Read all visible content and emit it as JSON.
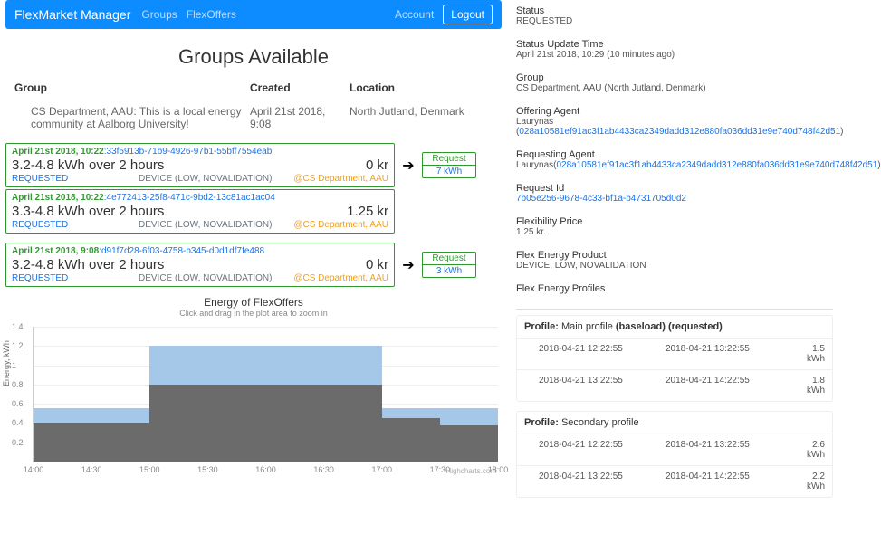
{
  "nav": {
    "brand": "FlexMarket Manager",
    "links": [
      "Groups",
      "FlexOffers"
    ],
    "account": "Account",
    "logout": "Logout"
  },
  "page_title": "Groups Available",
  "groups_table": {
    "headers": {
      "group": "Group",
      "created": "Created",
      "location": "Location"
    },
    "rows": [
      {
        "group": "CS Department, AAU: This is a local energy community at Aalborg University!",
        "created": "April 21st 2018, 9:08",
        "location": "North Jutland, Denmark"
      }
    ]
  },
  "clusters": [
    {
      "offers": [
        {
          "ts": "April 21st 2018, 10:22",
          "id": ":33f5913b-71b9-4926-97b1-55bff7554eab",
          "desc": "3.2-4.8 kWh over 2 hours",
          "price": "0 kr",
          "status": "REQUESTED",
          "dev": "DEVICE (LOW, NOVALIDATION)",
          "loc": "@CS Department, AAU"
        },
        {
          "ts": "April 21st 2018, 10:22",
          "id": ":4e772413-25f8-471c-9bd2-13c81ac1ac04",
          "desc": "3.3-4.8 kWh over 2 hours",
          "price": "1.25 kr",
          "status": "REQUESTED",
          "dev": "DEVICE (LOW, NOVALIDATION)",
          "loc": "@CS Department, AAU"
        }
      ],
      "request": {
        "label": "Request",
        "energy": "7 kWh"
      }
    },
    {
      "offers": [
        {
          "ts": "April 21st 2018, 9:08",
          "id": ":d91f7d28-6f03-4758-b345-d0d1df7fe488",
          "desc": "3.2-4.8 kWh over 2 hours",
          "price": "0 kr",
          "status": "REQUESTED",
          "dev": "DEVICE (LOW, NOVALIDATION)",
          "loc": "@CS Department, AAU"
        }
      ],
      "request": {
        "label": "Request",
        "energy": "3 kWh"
      }
    }
  ],
  "chart": {
    "title": "Energy of FlexOffers",
    "subtitle": "Click and drag in the plot area to zoom in",
    "ylabel": "Energy, kWh",
    "credit": "Highcharts.com",
    "ymax": 1.4,
    "yticks": [
      0.2,
      0.4,
      0.6,
      0.8,
      1,
      1.2,
      1.4
    ],
    "xticks": [
      "14:00",
      "14:30",
      "15:00",
      "15:30",
      "16:00",
      "16:30",
      "17:00",
      "17:30",
      "18:00"
    ],
    "colors": {
      "upper": "#a6c8e8",
      "lower": "#6b6b6b",
      "grid": "#eeeeee",
      "axis": "#cccccc"
    },
    "series": [
      {
        "upper": 0.55,
        "lower": 0.4
      },
      {
        "upper": 0.55,
        "lower": 0.4
      },
      {
        "upper": 1.2,
        "lower": 0.8
      },
      {
        "upper": 1.2,
        "lower": 0.8
      },
      {
        "upper": 1.2,
        "lower": 0.8
      },
      {
        "upper": 1.2,
        "lower": 0.8
      },
      {
        "upper": 0.55,
        "lower": 0.45
      },
      {
        "upper": 0.55,
        "lower": 0.38
      }
    ]
  },
  "detail": {
    "status": {
      "k": "Status",
      "v": "REQUESTED"
    },
    "status_time": {
      "k": "Status Update Time",
      "v": "April 21st 2018, 10:29 (10 minutes ago)"
    },
    "group": {
      "k": "Group",
      "v": "CS Department, AAU (North Jutland, Denmark)"
    },
    "offering_agent": {
      "k": "Offering Agent",
      "name": "Laurynas",
      "hash": "028a10581ef91ac3f1ab4433ca2349dadd312e880fa036dd31e9e740d748f42d51"
    },
    "requesting_agent": {
      "k": "Requesting Agent",
      "name": "Laurynas",
      "hash": "028a10581ef91ac3f1ab4433ca2349dadd312e880fa036dd31e9e740d748f42d51"
    },
    "request_id": {
      "k": "Request Id",
      "v": "7b05e256-9678-4c33-bf1a-b4731705d0d2"
    },
    "flex_price": {
      "k": "Flexibility Price",
      "v": "1.25 kr."
    },
    "flex_product": {
      "k": "Flex Energy Product",
      "v": "DEVICE, LOW, NOVALIDATION"
    },
    "profiles_title": "Flex Energy Profiles",
    "profiles": [
      {
        "label_prefix": "Profile: ",
        "name": "Main profile ",
        "tag": "(baseload) (requested)",
        "rows": [
          {
            "from": "2018-04-21 12:22:55",
            "to": "2018-04-21 13:22:55",
            "e": "1.5 kWh"
          },
          {
            "from": "2018-04-21 13:22:55",
            "to": "2018-04-21 14:22:55",
            "e": "1.8 kWh"
          }
        ]
      },
      {
        "label_prefix": "Profile: ",
        "name": "Secondary profile",
        "tag": "",
        "rows": [
          {
            "from": "2018-04-21 12:22:55",
            "to": "2018-04-21 13:22:55",
            "e": "2.6 kWh"
          },
          {
            "from": "2018-04-21 13:22:55",
            "to": "2018-04-21 14:22:55",
            "e": "2.2 kWh"
          }
        ]
      }
    ]
  }
}
